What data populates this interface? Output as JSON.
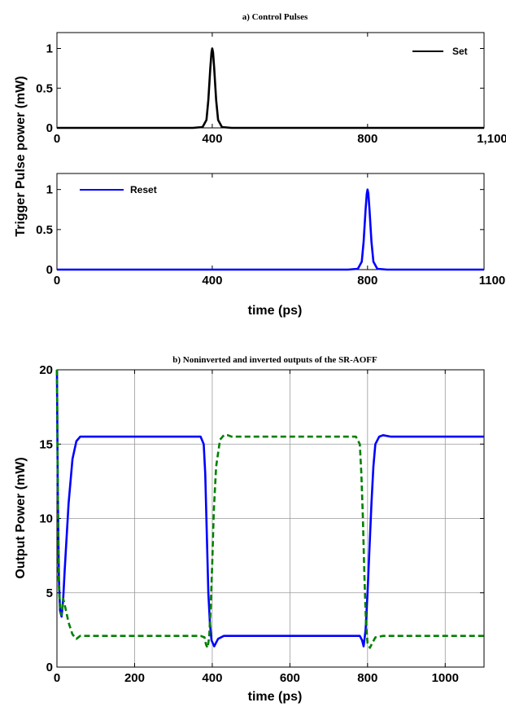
{
  "shared": {
    "ylabel_top": "Trigger Pulse power (mW)"
  },
  "chart_data": [
    {
      "type": "line",
      "title": "a) Control Pulses",
      "xlabel": "",
      "ylabel": "",
      "xlim": [
        0,
        1100
      ],
      "ylim": [
        0,
        1.2
      ],
      "xticks": [
        0,
        400,
        800,
        1100
      ],
      "xtick_labels": [
        "0",
        "400",
        "800",
        "1,100"
      ],
      "yticks": [
        0,
        0.5,
        1
      ],
      "ytick_labels": [
        "0",
        "0.5",
        "1"
      ],
      "grid": false,
      "legend_position": "top-right",
      "series": [
        {
          "name": "Set",
          "color": "#000000",
          "style": "solid",
          "x": [
            0,
            350,
            375,
            385,
            390,
            395,
            398,
            400,
            402,
            405,
            410,
            415,
            425,
            450,
            1100
          ],
          "y": [
            0,
            0,
            0.01,
            0.1,
            0.35,
            0.75,
            0.95,
            1.0,
            0.95,
            0.75,
            0.35,
            0.1,
            0.01,
            0,
            0
          ]
        }
      ]
    },
    {
      "type": "line",
      "title": "",
      "xlabel": "time (ps)",
      "ylabel": "",
      "xlim": [
        0,
        1100
      ],
      "ylim": [
        0,
        1.2
      ],
      "xticks": [
        0,
        400,
        800,
        1100
      ],
      "xtick_labels": [
        "0",
        "400",
        "800",
        "1100"
      ],
      "yticks": [
        0,
        0.5,
        1
      ],
      "ytick_labels": [
        "0",
        "0.5",
        "1"
      ],
      "grid": false,
      "legend_position": "top-left",
      "series": [
        {
          "name": "Reset",
          "color": "#0000ff",
          "style": "solid",
          "x": [
            0,
            750,
            775,
            785,
            790,
            795,
            798,
            800,
            802,
            805,
            810,
            815,
            825,
            850,
            1100
          ],
          "y": [
            0,
            0,
            0.01,
            0.1,
            0.35,
            0.75,
            0.95,
            1.0,
            0.95,
            0.75,
            0.35,
            0.1,
            0.01,
            0,
            0
          ]
        }
      ]
    },
    {
      "type": "line",
      "title": "b) Noninverted and inverted outputs of the SR-AOFF",
      "xlabel": "time (ps)",
      "ylabel": "Output Power (mW)",
      "xlim": [
        0,
        1100
      ],
      "ylim": [
        0,
        20
      ],
      "xticks": [
        0,
        200,
        400,
        600,
        800,
        1000
      ],
      "xtick_labels": [
        "0",
        "200",
        "400",
        "600",
        "800",
        "1000"
      ],
      "yticks": [
        0,
        5,
        10,
        15,
        20
      ],
      "ytick_labels": [
        "0",
        "5",
        "10",
        "15",
        "20"
      ],
      "grid": true,
      "series": [
        {
          "color": "#0000ff",
          "style": "solid",
          "x": [
            0,
            2,
            5,
            8,
            12,
            16,
            20,
            30,
            40,
            50,
            60,
            80,
            370,
            378,
            382,
            386,
            390,
            394,
            398,
            405,
            415,
            430,
            780,
            786,
            790,
            795,
            800,
            805,
            810,
            815,
            820,
            830,
            840,
            860,
            1100
          ],
          "y": [
            20,
            12,
            6,
            3.8,
            3.4,
            4.5,
            6.5,
            11,
            14,
            15.2,
            15.5,
            15.5,
            15.5,
            15,
            13,
            9,
            5,
            3,
            1.8,
            1.4,
            1.9,
            2.1,
            2.1,
            1.8,
            1.4,
            2.5,
            5,
            8,
            11,
            13.5,
            15,
            15.5,
            15.6,
            15.5,
            15.5
          ]
        },
        {
          "color": "#008000",
          "style": "dashed",
          "x": [
            0,
            4,
            8,
            12,
            16,
            20,
            30,
            40,
            50,
            60,
            80,
            370,
            380,
            384,
            388,
            392,
            396,
            400,
            404,
            410,
            420,
            430,
            440,
            450,
            770,
            780,
            784,
            788,
            792,
            796,
            800,
            806,
            812,
            820,
            840,
            1100
          ],
          "y": [
            20,
            6,
            4,
            3.5,
            4.6,
            4.2,
            3,
            2.2,
            1.9,
            2.1,
            2.1,
            2.1,
            2,
            1.5,
            1.3,
            2,
            4,
            7,
            10.5,
            13.5,
            15.3,
            15.6,
            15.6,
            15.5,
            15.5,
            15,
            13,
            10,
            6,
            3,
            1.6,
            1.3,
            1.6,
            2,
            2.1,
            2.1
          ]
        }
      ]
    }
  ]
}
